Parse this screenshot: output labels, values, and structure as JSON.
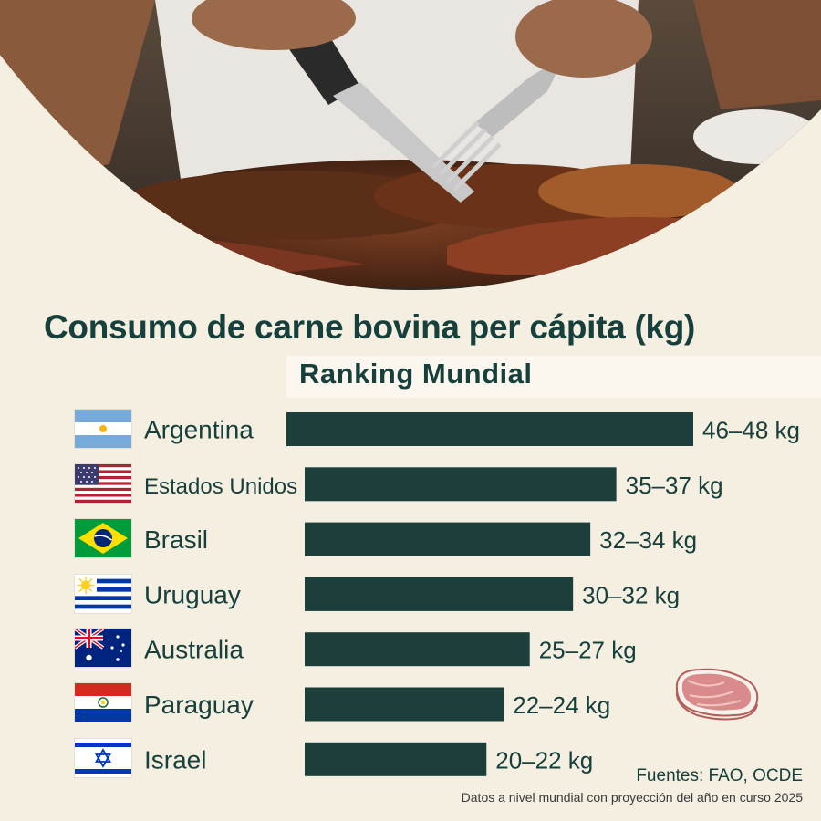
{
  "header": {
    "title": "Consumo de carne bovina per cápita (kg)",
    "subtitle": "Ranking Mundial"
  },
  "chart_data": {
    "type": "bar",
    "orientation": "horizontal",
    "title": "Consumo de carne bovina per cápita (kg)",
    "subtitle": "Ranking Mundial",
    "categories": [
      "Argentina",
      "Estados Unidos",
      "Brasil",
      "Uruguay",
      "Australia",
      "Paraguay",
      "Israel"
    ],
    "values": [
      47,
      36,
      33,
      31,
      26,
      23,
      21
    ],
    "value_labels": [
      "46–48 kg",
      "35–37 kg",
      "32–34 kg",
      "30–32 kg",
      "25–27 kg",
      "22–24 kg",
      "20–22 kg"
    ],
    "unit": "kg",
    "bar_color": "#1c3f3b",
    "grid": false,
    "legend": "none"
  },
  "flags": [
    "argentina-flag-icon",
    "usa-flag-icon",
    "brazil-flag-icon",
    "uruguay-flag-icon",
    "australia-flag-icon",
    "paraguay-flag-icon",
    "israel-flag-icon"
  ],
  "footer": {
    "sources": "Fuentes: FAO, OCDE",
    "note": "Datos a nivel mundial con proyección del año en curso 2025"
  },
  "colors": {
    "background": "#f5efe2",
    "primary": "#17403c",
    "bar": "#1c3f3b"
  }
}
